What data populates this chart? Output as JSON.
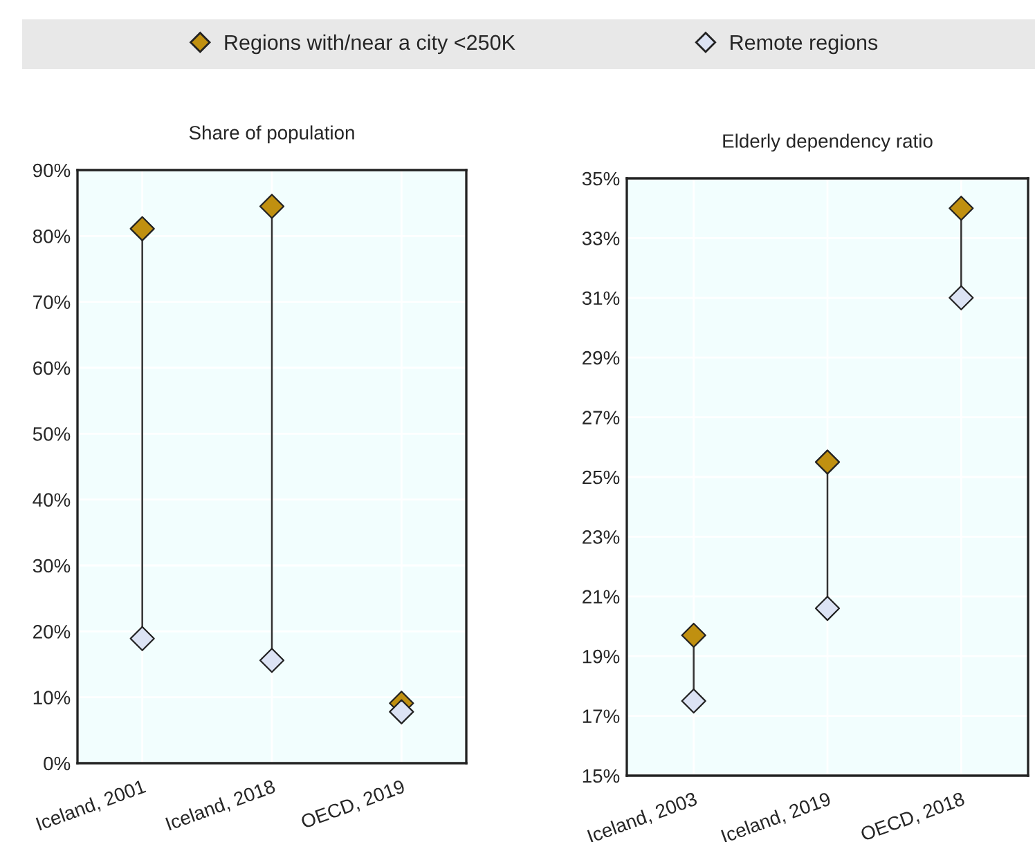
{
  "chart_data": [
    {
      "type": "scatter",
      "title": "Share of population",
      "categories": [
        "Iceland, 2001",
        "Iceland, 2018",
        "OECD, 2019"
      ],
      "series": [
        {
          "name": "Regions with/near a city <250K",
          "color": "#c09010",
          "values": [
            81.1,
            84.5,
            9.1
          ]
        },
        {
          "name": "Remote regions",
          "color": "#dce3f4",
          "values": [
            18.9,
            15.6,
            7.8
          ]
        }
      ],
      "ylim": [
        0,
        90
      ],
      "yticks": [
        {
          "value": 0,
          "label": "0%"
        },
        {
          "value": 10,
          "label": "10%"
        },
        {
          "value": 20,
          "label": "20%"
        },
        {
          "value": 30,
          "label": "30%"
        },
        {
          "value": 40,
          "label": "40%"
        },
        {
          "value": 50,
          "label": "50%"
        },
        {
          "value": 60,
          "label": "60%"
        },
        {
          "value": 70,
          "label": "70%"
        },
        {
          "value": 80,
          "label": "80%"
        },
        {
          "value": 90,
          "label": "90%"
        }
      ],
      "marker": "diamond",
      "grid": true,
      "legend": "top"
    },
    {
      "type": "scatter",
      "title": "Elderly dependency ratio",
      "categories": [
        "Iceland, 2003",
        "Iceland, 2019",
        "OECD, 2018"
      ],
      "series": [
        {
          "color": "#c09010",
          "values": [
            19.7,
            25.5,
            34.0
          ]
        },
        {
          "color": "#dce3f4",
          "values": [
            17.5,
            20.6,
            31.0
          ]
        }
      ],
      "ylim": [
        15,
        35
      ],
      "yticks": [
        {
          "value": 15,
          "label": "15%"
        },
        {
          "value": 17,
          "label": "17%"
        },
        {
          "value": 19,
          "label": "19%"
        },
        {
          "value": 21,
          "label": "21%"
        },
        {
          "value": 23,
          "label": "23%"
        },
        {
          "value": 25,
          "label": "25%"
        },
        {
          "value": 27,
          "label": "27%"
        },
        {
          "value": 29,
          "label": "29%"
        },
        {
          "value": 31,
          "label": "31%"
        },
        {
          "value": 33,
          "label": "33%"
        },
        {
          "value": 35,
          "label": "35%"
        }
      ],
      "marker": "diamond",
      "grid": true
    }
  ]
}
